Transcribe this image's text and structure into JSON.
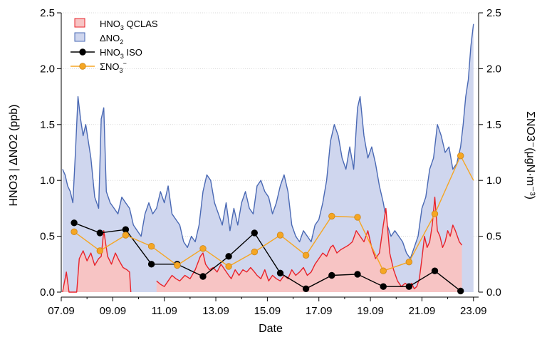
{
  "chart_data": {
    "type": "area+line",
    "xlabel": "Date",
    "ylabel_left": "HNO3 | ΔNO2 (ppb)",
    "ylabel_right": "ΣNO3⁻(μgN·m⁻³)",
    "ylim_left": [
      0,
      2.5
    ],
    "ylim_right": [
      0,
      2.5
    ],
    "xlim_days": [
      7,
      23.2
    ],
    "x_ticks": [
      {
        "value": 7,
        "label": "07.09"
      },
      {
        "value": 9,
        "label": "09.09"
      },
      {
        "value": 11,
        "label": "11.09"
      },
      {
        "value": 13,
        "label": "13.09"
      },
      {
        "value": 15,
        "label": "15.09"
      },
      {
        "value": 17,
        "label": "17.09"
      },
      {
        "value": 19,
        "label": "19.09"
      },
      {
        "value": 21,
        "label": "21.09"
      },
      {
        "value": 23,
        "label": "23.09"
      }
    ],
    "y_ticks": [
      {
        "value": 0,
        "label": "0.0"
      },
      {
        "value": 0.5,
        "label": "0.5"
      },
      {
        "value": 1,
        "label": "1.0"
      },
      {
        "value": 1.5,
        "label": "1.5"
      },
      {
        "value": 2,
        "label": "2.0"
      },
      {
        "value": 2.5,
        "label": "2.5"
      }
    ],
    "grid": "horizontal dotted",
    "legend_position": "top-left",
    "series": [
      {
        "name": "HNO3 QCLAS",
        "legend": {
          "main": "HNO",
          "sub": "3",
          "rest": " QCLAS"
        },
        "kind": "area",
        "line_color": "#e8232b",
        "fill_color": "#f7c4c4",
        "x": [
          7.05,
          7.2,
          7.3,
          7.5,
          7.6,
          7.7,
          7.85,
          8.0,
          8.15,
          8.3,
          8.45,
          8.55,
          8.65,
          8.8,
          8.95,
          9.1,
          9.25,
          9.4,
          9.55,
          9.65,
          9.7,
          null,
          10.7,
          10.85,
          11.0,
          11.15,
          11.3,
          11.45,
          11.6,
          11.8,
          12.0,
          12.2,
          12.4,
          12.5,
          12.6,
          12.75,
          12.9,
          13.05,
          13.2,
          13.35,
          13.5,
          13.6,
          13.75,
          13.9,
          14.05,
          14.2,
          14.35,
          14.5,
          14.6,
          14.75,
          14.9,
          15.05,
          15.2,
          15.35,
          15.5,
          15.65,
          15.8,
          15.95,
          16.1,
          16.25,
          16.4,
          16.55,
          16.7,
          16.85,
          17.0,
          17.15,
          17.3,
          17.45,
          17.55,
          17.7,
          17.85,
          18.0,
          18.15,
          18.3,
          18.45,
          18.6,
          18.75,
          18.9,
          19.05,
          19.2,
          19.35,
          19.5,
          19.6,
          19.75,
          19.9,
          20.05,
          20.2,
          20.35,
          20.5,
          20.6,
          20.7,
          20.8,
          20.9,
          21.0,
          21.1,
          21.2,
          21.3,
          21.4,
          21.5,
          21.6,
          21.7,
          21.8,
          21.9,
          22.0,
          22.1,
          22.2,
          22.3,
          22.45,
          22.55
        ],
        "y": [
          0.0,
          0.18,
          0.0,
          0.0,
          0.0,
          0.3,
          0.37,
          0.28,
          0.35,
          0.24,
          0.3,
          0.32,
          0.55,
          0.32,
          0.25,
          0.35,
          0.28,
          0.22,
          0.2,
          0.18,
          0.0,
          null,
          0.1,
          0.07,
          0.05,
          0.1,
          0.15,
          0.12,
          0.1,
          0.15,
          0.12,
          0.2,
          0.32,
          0.35,
          0.25,
          0.2,
          0.22,
          0.18,
          0.25,
          0.2,
          0.15,
          0.12,
          0.2,
          0.15,
          0.2,
          0.18,
          0.22,
          0.18,
          0.15,
          0.12,
          0.2,
          0.1,
          0.15,
          0.12,
          0.1,
          0.15,
          0.12,
          0.2,
          0.15,
          0.18,
          0.22,
          0.15,
          0.18,
          0.25,
          0.3,
          0.35,
          0.32,
          0.4,
          0.42,
          0.35,
          0.38,
          0.4,
          0.42,
          0.45,
          0.55,
          0.5,
          0.45,
          0.55,
          0.4,
          0.3,
          0.35,
          0.6,
          0.75,
          0.35,
          0.2,
          0.1,
          0.05,
          0.08,
          0.05,
          0.08,
          0.03,
          0.05,
          0.12,
          0.3,
          0.5,
          0.4,
          0.45,
          0.6,
          0.85,
          0.55,
          0.5,
          0.4,
          0.45,
          0.55,
          0.5,
          0.6,
          0.55,
          0.45,
          0.42
        ]
      },
      {
        "name": "ΔNO2",
        "legend": {
          "main": "ΔNO",
          "sub": "2",
          "rest": ""
        },
        "kind": "area",
        "line_color": "#4a69b4",
        "fill_color": "#cfd6ee",
        "x": [
          7.05,
          7.15,
          7.25,
          7.35,
          7.45,
          7.55,
          7.65,
          7.75,
          7.85,
          7.95,
          8.05,
          8.15,
          8.3,
          8.45,
          8.55,
          8.65,
          8.75,
          8.9,
          9.05,
          9.2,
          9.35,
          9.5,
          9.65,
          9.8,
          9.95,
          10.1,
          10.25,
          10.4,
          10.55,
          10.7,
          10.85,
          11.0,
          11.15,
          11.3,
          11.45,
          11.6,
          11.75,
          11.9,
          12.05,
          12.2,
          12.35,
          12.5,
          12.65,
          12.8,
          12.95,
          13.1,
          13.25,
          13.4,
          13.55,
          13.7,
          13.85,
          14.0,
          14.15,
          14.3,
          14.45,
          14.6,
          14.75,
          14.9,
          15.05,
          15.2,
          15.35,
          15.5,
          15.65,
          15.8,
          15.95,
          16.1,
          16.25,
          16.4,
          16.55,
          16.7,
          16.85,
          17.0,
          17.15,
          17.3,
          17.45,
          17.6,
          17.75,
          17.9,
          18.05,
          18.2,
          18.35,
          18.5,
          18.6,
          18.75,
          18.9,
          19.05,
          19.2,
          19.35,
          19.5,
          19.65,
          19.8,
          19.95,
          20.1,
          20.25,
          20.4,
          20.55,
          20.7,
          20.85,
          21.0,
          21.15,
          21.3,
          21.45,
          21.6,
          21.75,
          21.9,
          22.05,
          22.2,
          22.35,
          22.5,
          22.6,
          22.7,
          22.8,
          22.9,
          23.0
        ],
        "y": [
          1.1,
          1.05,
          0.95,
          0.9,
          0.8,
          1.25,
          1.75,
          1.55,
          1.4,
          1.5,
          1.35,
          1.2,
          0.85,
          0.75,
          1.55,
          1.65,
          0.9,
          0.8,
          0.75,
          0.7,
          0.85,
          0.8,
          0.75,
          0.6,
          0.55,
          0.5,
          0.7,
          0.8,
          0.7,
          0.75,
          0.9,
          0.8,
          0.95,
          0.7,
          0.65,
          0.6,
          0.45,
          0.4,
          0.5,
          0.45,
          0.6,
          0.9,
          1.05,
          1.0,
          0.8,
          0.7,
          0.6,
          0.8,
          0.55,
          0.75,
          0.6,
          0.8,
          0.9,
          0.75,
          0.7,
          0.95,
          1.0,
          0.9,
          0.85,
          0.7,
          0.8,
          0.95,
          1.05,
          0.9,
          0.6,
          0.5,
          0.45,
          0.55,
          0.5,
          0.45,
          0.6,
          0.65,
          0.8,
          1.0,
          1.35,
          1.5,
          1.4,
          1.2,
          1.1,
          1.3,
          1.1,
          1.65,
          1.75,
          1.4,
          1.2,
          1.3,
          1.15,
          0.95,
          0.8,
          0.6,
          0.5,
          0.55,
          0.5,
          0.45,
          0.35,
          0.3,
          0.4,
          0.5,
          0.75,
          0.85,
          1.1,
          1.2,
          1.5,
          1.4,
          1.25,
          1.3,
          1.1,
          1.15,
          1.3,
          1.5,
          1.75,
          1.9,
          2.2,
          2.4
        ]
      },
      {
        "name": "HNO3 ISO",
        "legend": {
          "main": "HNO",
          "sub": "3",
          "rest": " ISO"
        },
        "kind": "line-markers",
        "color": "#000000",
        "marker_fill": "#000000",
        "x": [
          7.5,
          8.5,
          9.5,
          10.5,
          11.5,
          12.5,
          13.5,
          14.5,
          15.5,
          16.5,
          17.5,
          18.5,
          19.5,
          20.5,
          21.5,
          22.5
        ],
        "y": [
          0.62,
          0.53,
          0.56,
          0.25,
          0.25,
          0.14,
          0.32,
          0.53,
          0.17,
          0.03,
          0.15,
          0.16,
          0.05,
          0.05,
          0.19,
          0.01
        ]
      },
      {
        "name": "ΣNO3⁻",
        "legend": {
          "main": "ΣNO",
          "sub": "3",
          "sup": "−",
          "rest": ""
        },
        "kind": "line-markers",
        "color": "#f5a623",
        "marker_fill": "#f5a623",
        "x": [
          7.5,
          8.5,
          9.5,
          10.5,
          11.5,
          12.5,
          13.5,
          14.5,
          15.5,
          16.5,
          17.5,
          18.5,
          19.5,
          20.5,
          21.5,
          22.5,
          23.0
        ],
        "y": [
          0.54,
          0.37,
          0.51,
          0.41,
          0.24,
          0.39,
          0.23,
          0.36,
          0.51,
          0.33,
          0.68,
          0.67,
          0.19,
          0.27,
          0.7,
          1.22,
          1.0
        ]
      }
    ]
  }
}
